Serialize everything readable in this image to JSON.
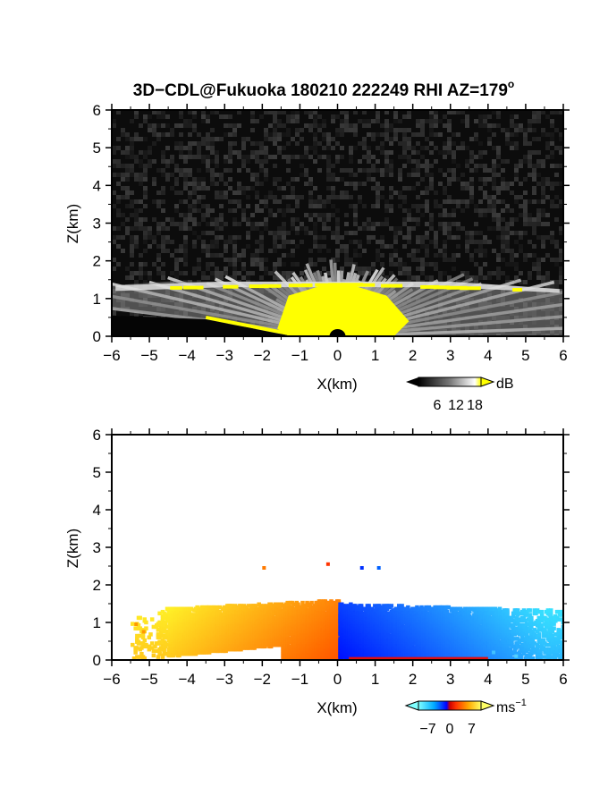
{
  "figure": {
    "title_main": "3D−CDL@Fukuoka 180210 222249 RHI AZ=179",
    "title_sup": "o"
  },
  "chart_data": [
    {
      "type": "heatmap",
      "name": "backscatter",
      "xlabel": "X(km)",
      "ylabel": "Z(km)",
      "xlim": [
        -6,
        6
      ],
      "ylim": [
        0,
        6
      ],
      "xticks": [
        "−6",
        "−5",
        "−4",
        "−3",
        "−2",
        "−1",
        "0",
        "1",
        "2",
        "3",
        "4",
        "5",
        "6"
      ],
      "yticks": [
        "0",
        "1",
        "2",
        "3",
        "4",
        "5",
        "6"
      ],
      "background_color": "#0c0c0c",
      "saturation_color": "#ffff00",
      "colorbar": {
        "unit": "dB",
        "unit_sup": "",
        "tick_labels": [
          "6",
          "12",
          "18"
        ],
        "ticks": [
          6,
          12,
          18
        ],
        "range": [
          0,
          20
        ],
        "colors": [
          "#000000",
          "#777777",
          "#ffffff",
          "#ffff00"
        ]
      },
      "regions": {
        "top_height_km": 1.35,
        "saturated_top_km": 1.2,
        "saturated_halfwidth_km": 1.3
      }
    },
    {
      "type": "heatmap",
      "name": "doppler_velocity",
      "xlabel": "X(km)",
      "ylabel": "Z(km)",
      "xlim": [
        -6,
        6
      ],
      "ylim": [
        0,
        6
      ],
      "xticks": [
        "−6",
        "−5",
        "−4",
        "−3",
        "−2",
        "−1",
        "0",
        "1",
        "2",
        "3",
        "4",
        "5",
        "6"
      ],
      "yticks": [
        "0",
        "1",
        "2",
        "3",
        "4",
        "5",
        "6"
      ],
      "colorbar": {
        "unit": "ms",
        "unit_sup": "−1",
        "tick_labels": [
          "−7",
          "0",
          "7"
        ],
        "ticks": [
          -7,
          0,
          7
        ],
        "range": [
          -10,
          10
        ],
        "colors": [
          "#7fffff",
          "#00aaff",
          "#0000ff",
          "#cc0000",
          "#ff5500",
          "#ffcc00",
          "#ffff66"
        ]
      },
      "regions": {
        "left_color_far": "#ffdd22",
        "left_color_near": "#ff6a00",
        "right_color_near": "#0020ff",
        "right_color_far": "#30c8ff"
      }
    }
  ]
}
